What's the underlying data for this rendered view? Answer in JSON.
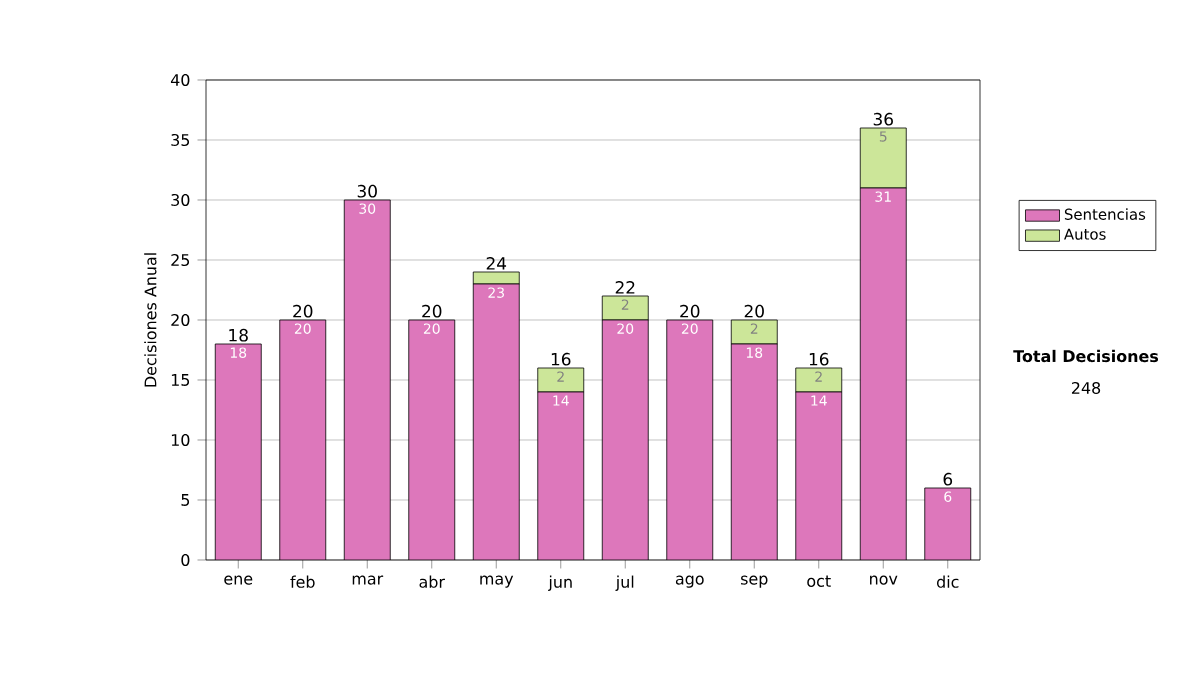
{
  "chart_data": {
    "type": "bar",
    "stacked": true,
    "ylabel": "Decisiones Anual",
    "categories": [
      "ene",
      "feb",
      "mar",
      "abr",
      "may",
      "jun",
      "jul",
      "ago",
      "sep",
      "oct",
      "nov",
      "dic"
    ],
    "series": [
      {
        "name": "Sentencias",
        "color": "#dd77bb",
        "values": [
          18,
          20,
          30,
          20,
          23,
          14,
          20,
          20,
          18,
          14,
          31,
          6
        ],
        "value_labels": [
          "18",
          "20",
          "30",
          "20",
          "23",
          "14",
          "20",
          "20",
          "18",
          "14",
          "31",
          "6"
        ]
      },
      {
        "name": "Autos",
        "color": "#cce699",
        "values": [
          0,
          0,
          0,
          0,
          1,
          2,
          2,
          0,
          2,
          2,
          5,
          0
        ],
        "value_labels": [
          null,
          null,
          null,
          null,
          null,
          "2",
          "2",
          null,
          "2",
          "2",
          "5",
          null
        ]
      }
    ],
    "totals": [
      "18",
      "20",
      "30",
      "20",
      "24",
      "16",
      "22",
      "20",
      "20",
      "16",
      "36",
      "6"
    ],
    "ylim": [
      0,
      40
    ],
    "yticks": [
      0,
      5,
      10,
      15,
      20,
      25,
      30,
      35,
      40
    ],
    "grid": "y",
    "legend": "right",
    "annotations": [
      "Total Decisiones",
      "248"
    ]
  }
}
